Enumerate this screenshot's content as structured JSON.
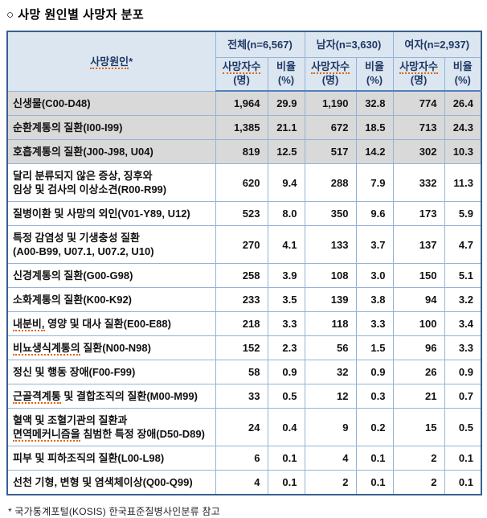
{
  "title": "○ 사망 원인별 사망자 분포",
  "footnote": "* 국가통계포털(KOSIS) 한국표준질병사인분류 참고",
  "colors": {
    "header_bg": "#dce6f1",
    "shaded_row_bg": "#d9d9d9",
    "inner_border": "#95b3d7",
    "outer_border": "#365f91",
    "header_separator": "#4f81bd",
    "header_text": "#1f3864",
    "spellcheck_underline": "#e2620e"
  },
  "table": {
    "cause_header": {
      "label": "사망원인*",
      "misspelled": [
        "사망원인"
      ]
    },
    "groups": [
      {
        "label": "전체(n=6,567)"
      },
      {
        "label": "남자(n=3,630)"
      },
      {
        "label": "여자(n=2,937)"
      }
    ],
    "subheader": {
      "count": "사망자수\n(명)",
      "pct": "비율\n(%)",
      "count_misspelled": [
        "사망자수"
      ]
    },
    "rows": [
      {
        "label": "신생물(C00-D48)",
        "shaded": true,
        "values": [
          "1,964",
          "29.9",
          "1,190",
          "32.8",
          "774",
          "26.4"
        ]
      },
      {
        "label": "순환계통의 질환(I00-I99)",
        "shaded": true,
        "values": [
          "1,385",
          "21.1",
          "672",
          "18.5",
          "713",
          "24.3"
        ]
      },
      {
        "label": "호흡계통의 질환(J00-J98, U04)",
        "shaded": true,
        "values": [
          "819",
          "12.5",
          "517",
          "14.2",
          "302",
          "10.3"
        ]
      },
      {
        "label": "달리 분류되지 않은 증상, 징후와\n임상 및 검사의 이상소견(R00-R99)",
        "shaded": false,
        "values": [
          "620",
          "9.4",
          "288",
          "7.9",
          "332",
          "11.3"
        ]
      },
      {
        "label": "질병이환 및 사망의 외인(V01-Y89, U12)",
        "shaded": false,
        "values": [
          "523",
          "8.0",
          "350",
          "9.6",
          "173",
          "5.9"
        ]
      },
      {
        "label": "특정 감염성 및 기생충성 질환\n(A00-B99, U07.1, U07.2, U10)",
        "shaded": false,
        "values": [
          "270",
          "4.1",
          "133",
          "3.7",
          "137",
          "4.7"
        ]
      },
      {
        "label": "신경계통의 질환(G00-G98)",
        "shaded": false,
        "values": [
          "258",
          "3.9",
          "108",
          "3.0",
          "150",
          "5.1"
        ]
      },
      {
        "label": "소화계통의 질환(K00-K92)",
        "shaded": false,
        "values": [
          "233",
          "3.5",
          "139",
          "3.8",
          "94",
          "3.2"
        ]
      },
      {
        "label": "내분비, 영양 및 대사 질환(E00-E88)",
        "shaded": false,
        "misspelled": [
          "내분비,"
        ],
        "values": [
          "218",
          "3.3",
          "118",
          "3.3",
          "100",
          "3.4"
        ]
      },
      {
        "label": "비뇨생식계통의 질환(N00-N98)",
        "shaded": false,
        "misspelled": [
          "비뇨생식계통의"
        ],
        "values": [
          "152",
          "2.3",
          "56",
          "1.5",
          "96",
          "3.3"
        ]
      },
      {
        "label": "정신 및 행동 장애(F00-F99)",
        "shaded": false,
        "values": [
          "58",
          "0.9",
          "32",
          "0.9",
          "26",
          "0.9"
        ]
      },
      {
        "label": "근골격계통 및 결합조직의 질환(M00-M99)",
        "shaded": false,
        "misspelled": [
          "근골격계통"
        ],
        "values": [
          "33",
          "0.5",
          "12",
          "0.3",
          "21",
          "0.7"
        ]
      },
      {
        "label": "혈액 및 조혈기관의 질환과\n면역메커니즘을 침범한 특정 장애(D50-D89)",
        "shaded": false,
        "misspelled": [
          "면역메커니즘을"
        ],
        "values": [
          "24",
          "0.4",
          "9",
          "0.2",
          "15",
          "0.5"
        ]
      },
      {
        "label": "피부 및 피하조직의 질환(L00-L98)",
        "shaded": false,
        "values": [
          "6",
          "0.1",
          "4",
          "0.1",
          "2",
          "0.1"
        ]
      },
      {
        "label": "선천 기형, 변형 및 염색체이상(Q00-Q99)",
        "shaded": false,
        "values": [
          "4",
          "0.1",
          "2",
          "0.1",
          "2",
          "0.1"
        ]
      }
    ]
  }
}
